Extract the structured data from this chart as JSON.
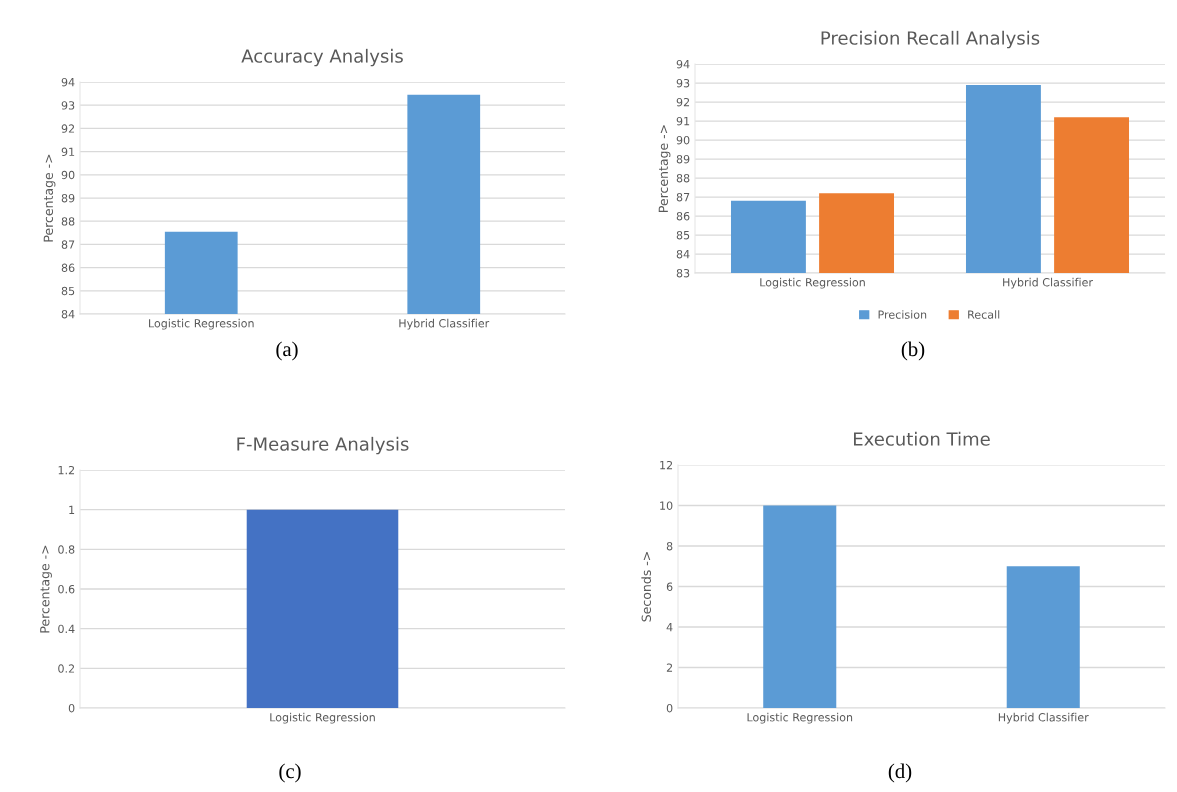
{
  "chart_data": [
    {
      "type": "bar",
      "title": "Accuracy Analysis",
      "ylabel": "Percentage ->",
      "categories": [
        "Logistic Regression",
        "Hybrid Classifier"
      ],
      "values": [
        87.55,
        93.45
      ],
      "color": "#5b9bd5",
      "ylim": [
        84,
        94
      ],
      "yticks": [
        84,
        85,
        86,
        87,
        88,
        89,
        90,
        91,
        92,
        93,
        94
      ],
      "grid": "y",
      "annotations": [
        "(a)"
      ]
    },
    {
      "type": "bar",
      "title": "Precision Recall Analysis",
      "ylabel": "Percentage ->",
      "categories": [
        "Logistic Regression",
        "Hybrid Classifier"
      ],
      "series": [
        {
          "name": "Precision",
          "color": "#5b9bd5",
          "values": [
            86.8,
            92.9
          ]
        },
        {
          "name": "Recall",
          "color": "#ed7d31",
          "values": [
            87.2,
            91.2
          ]
        }
      ],
      "ylim": [
        83,
        94
      ],
      "yticks": [
        83,
        84,
        85,
        86,
        87,
        88,
        89,
        90,
        91,
        92,
        93,
        94
      ],
      "grid": "y",
      "legend": "bottom",
      "annotations": [
        "(b)"
      ]
    },
    {
      "type": "bar",
      "title": "F-Measure Analysis",
      "ylabel": "Percentage ->",
      "categories": [
        "Logistic Regression"
      ],
      "values": [
        1
      ],
      "color": "#4472c4",
      "ylim": [
        0,
        1.2
      ],
      "yticks": [
        0,
        0.2,
        0.4,
        0.6,
        0.8,
        1,
        1.2
      ],
      "grid": "y",
      "annotations": [
        "(c)"
      ]
    },
    {
      "type": "bar",
      "title": "Execution Time",
      "ylabel": "Seconds ->",
      "categories": [
        "Logistic Regression",
        "Hybrid Classifier"
      ],
      "values": [
        10,
        7
      ],
      "color": "#5b9bd5",
      "ylim": [
        0,
        12
      ],
      "yticks": [
        0,
        2,
        4,
        6,
        8,
        10,
        12
      ],
      "grid": "y",
      "annotations": [
        "(d)"
      ]
    }
  ]
}
